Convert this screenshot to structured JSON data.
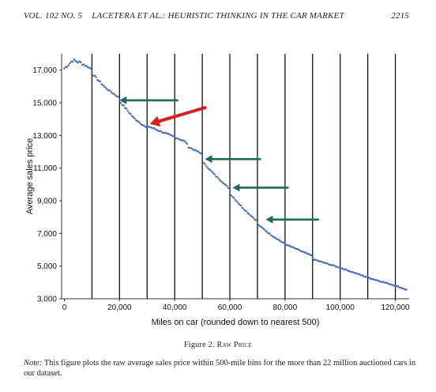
{
  "header": {
    "left": "VOL. 102 NO. 5",
    "center": "LACETERA ET AL.: HEURISTIC THINKING IN THE CAR MARKET",
    "right": "2215"
  },
  "figure": {
    "caption_label": "Figure 2.",
    "caption_title": "Raw Price",
    "note_label": "Note:",
    "note_text": "This figure plots the raw average sales price within 500-mile bins for the more than 22 million auctioned cars in our dataset."
  },
  "chart_data": {
    "type": "scatter",
    "xlabel": "Miles on car (rounded down to nearest 500)",
    "ylabel": "Average sales price",
    "xlim": [
      -1000,
      125000
    ],
    "ylim": [
      3000,
      18000
    ],
    "xticks": [
      0,
      20000,
      40000,
      60000,
      80000,
      100000,
      120000
    ],
    "xtick_labels": [
      "0",
      "20,000",
      "40,000",
      "60,000",
      "80,000",
      "100,000",
      "120,000"
    ],
    "yticks": [
      3000,
      5000,
      7000,
      9000,
      11000,
      13000,
      15000,
      17000
    ],
    "ytick_labels": [
      "3,000",
      "5,000",
      "7,000",
      "9,000",
      "11,000",
      "13,000",
      "15,000",
      "17,000"
    ],
    "vlines": [
      10000,
      20000,
      30000,
      40000,
      50000,
      60000,
      70000,
      80000,
      90000,
      100000,
      110000,
      120000
    ],
    "marker_color": "#4a72b8",
    "curve_anchors": {
      "x": [
        0,
        3000,
        6000,
        9500,
        10500,
        15000,
        19500,
        20500,
        25000,
        29500,
        30500,
        40000,
        44000,
        45000,
        49500,
        50500,
        55000,
        59500,
        60500,
        65000,
        69500,
        70500,
        75000,
        80000,
        89500,
        90500,
        100000,
        110000,
        120000,
        124000
      ],
      "y": [
        17100,
        17600,
        17450,
        17100,
        16700,
        15900,
        15350,
        15000,
        14100,
        13500,
        13550,
        12900,
        12600,
        12300,
        11900,
        11300,
        10500,
        9800,
        9350,
        8500,
        7800,
        7500,
        6900,
        6350,
        5650,
        5400,
        4900,
        4300,
        3800,
        3550
      ]
    },
    "annotations": [
      {
        "name": "arrow-15k",
        "color": "#1e6b5c",
        "from": [
          20000,
          15150
        ],
        "to": [
          41000,
          15150
        ]
      },
      {
        "name": "arrow-red-30k",
        "color": "#dd1c1c",
        "from": [
          31000,
          13700
        ],
        "to": [
          51000,
          14700
        ]
      },
      {
        "name": "arrow-50k",
        "color": "#1e6b5c",
        "from": [
          51000,
          11550
        ],
        "to": [
          71000,
          11550
        ]
      },
      {
        "name": "arrow-60k",
        "color": "#1e6b5c",
        "from": [
          61000,
          9800
        ],
        "to": [
          81000,
          9800
        ]
      },
      {
        "name": "arrow-72k",
        "color": "#1e6b5c",
        "from": [
          73000,
          7850
        ],
        "to": [
          92000,
          7850
        ]
      }
    ]
  }
}
